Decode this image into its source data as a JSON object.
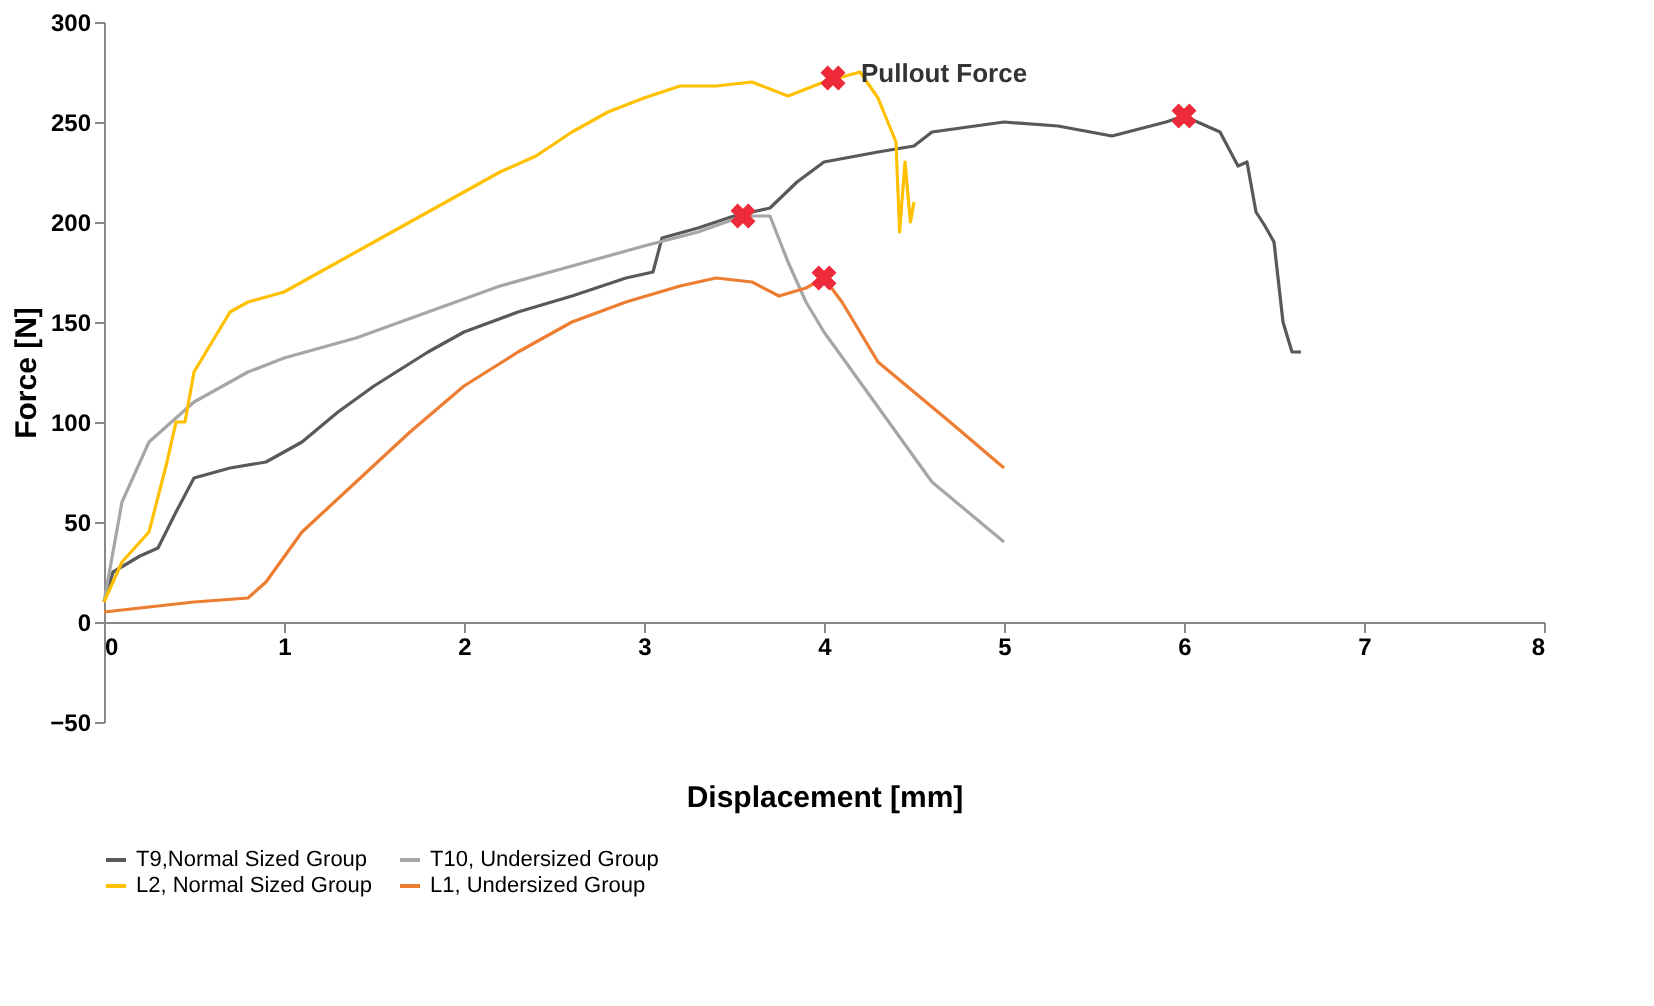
{
  "chart_data": {
    "type": "line",
    "xlabel": "Displacement [mm]",
    "ylabel": "Force [N]",
    "xlim": [
      0,
      8
    ],
    "xticks": [
      0,
      1,
      2,
      3,
      4,
      5,
      6,
      7,
      8
    ],
    "ylim": [
      -50,
      300
    ],
    "yticks": [
      -50,
      0,
      50,
      100,
      150,
      200,
      250,
      300
    ],
    "grid": false,
    "legend": "bottom",
    "line_style": "solid",
    "marker": "none",
    "series": [
      {
        "name": "T9,Normal Sized Group",
        "color": "#595959",
        "x": [
          0,
          0.05,
          0.2,
          0.3,
          0.4,
          0.5,
          0.7,
          0.9,
          1.1,
          1.3,
          1.5,
          1.8,
          2.0,
          2.3,
          2.6,
          2.9,
          3.05,
          3.1,
          3.3,
          3.5,
          3.7,
          3.85,
          4.0,
          4.3,
          4.5,
          4.6,
          5.0,
          5.3,
          5.6,
          5.9,
          6.0,
          6.2,
          6.3,
          6.35,
          6.4,
          6.45,
          6.5,
          6.55,
          6.6,
          6.65
        ],
        "values": [
          10,
          25,
          33,
          37,
          55,
          72,
          77,
          80,
          90,
          105,
          118,
          135,
          145,
          155,
          163,
          172,
          175,
          192,
          197,
          203,
          207,
          220,
          230,
          235,
          238,
          245,
          250,
          248,
          243,
          250,
          253,
          245,
          228,
          230,
          205,
          198,
          190,
          150,
          135,
          135
        ]
      },
      {
        "name": "T10, Undersized Group",
        "color": "#a6a6a6",
        "x": [
          0,
          0.1,
          0.25,
          0.5,
          0.8,
          1.0,
          1.4,
          1.8,
          2.2,
          2.6,
          3.0,
          3.3,
          3.55,
          3.7,
          3.8,
          3.9,
          4.0,
          4.2,
          4.4,
          4.6,
          4.8,
          5.0
        ],
        "values": [
          10,
          60,
          90,
          110,
          125,
          132,
          142,
          155,
          168,
          178,
          188,
          195,
          203,
          203,
          180,
          160,
          145,
          120,
          95,
          70,
          55,
          40
        ]
      },
      {
        "name": "L2, Normal Sized Group",
        "color": "#ffc000",
        "x": [
          0,
          0.1,
          0.25,
          0.35,
          0.4,
          0.45,
          0.5,
          0.6,
          0.7,
          0.8,
          1.0,
          1.2,
          1.5,
          1.8,
          2.0,
          2.2,
          2.4,
          2.6,
          2.8,
          3.0,
          3.2,
          3.4,
          3.6,
          3.8,
          4.0,
          4.2,
          4.3,
          4.4,
          4.42,
          4.45,
          4.48,
          4.5
        ],
        "values": [
          10,
          30,
          45,
          80,
          100,
          100,
          125,
          140,
          155,
          160,
          165,
          175,
          190,
          205,
          215,
          225,
          233,
          245,
          255,
          262,
          268,
          268,
          270,
          263,
          270,
          275,
          262,
          240,
          195,
          230,
          200,
          210
        ]
      },
      {
        "name": "L1, Undersized Group",
        "color": "#ed7d31",
        "x": [
          0,
          0.5,
          0.8,
          0.9,
          1.1,
          1.4,
          1.7,
          2.0,
          2.3,
          2.6,
          2.9,
          3.2,
          3.4,
          3.6,
          3.75,
          3.9,
          4.0,
          4.1,
          4.3,
          4.5,
          4.7,
          5.0
        ],
        "values": [
          5,
          10,
          12,
          20,
          45,
          70,
          95,
          118,
          135,
          150,
          160,
          168,
          172,
          170,
          163,
          167,
          172,
          160,
          130,
          115,
          100,
          77
        ]
      },
      {
        "type": "scatter",
        "marker": "cross",
        "color": "#ee2a3a",
        "x": [
          4.05,
          6.0,
          3.55,
          4.0
        ],
        "values": [
          272,
          253,
          203,
          172
        ]
      }
    ],
    "annotations": [
      {
        "text": "Pullout Force",
        "x": 4.05,
        "y": 272
      }
    ]
  }
}
